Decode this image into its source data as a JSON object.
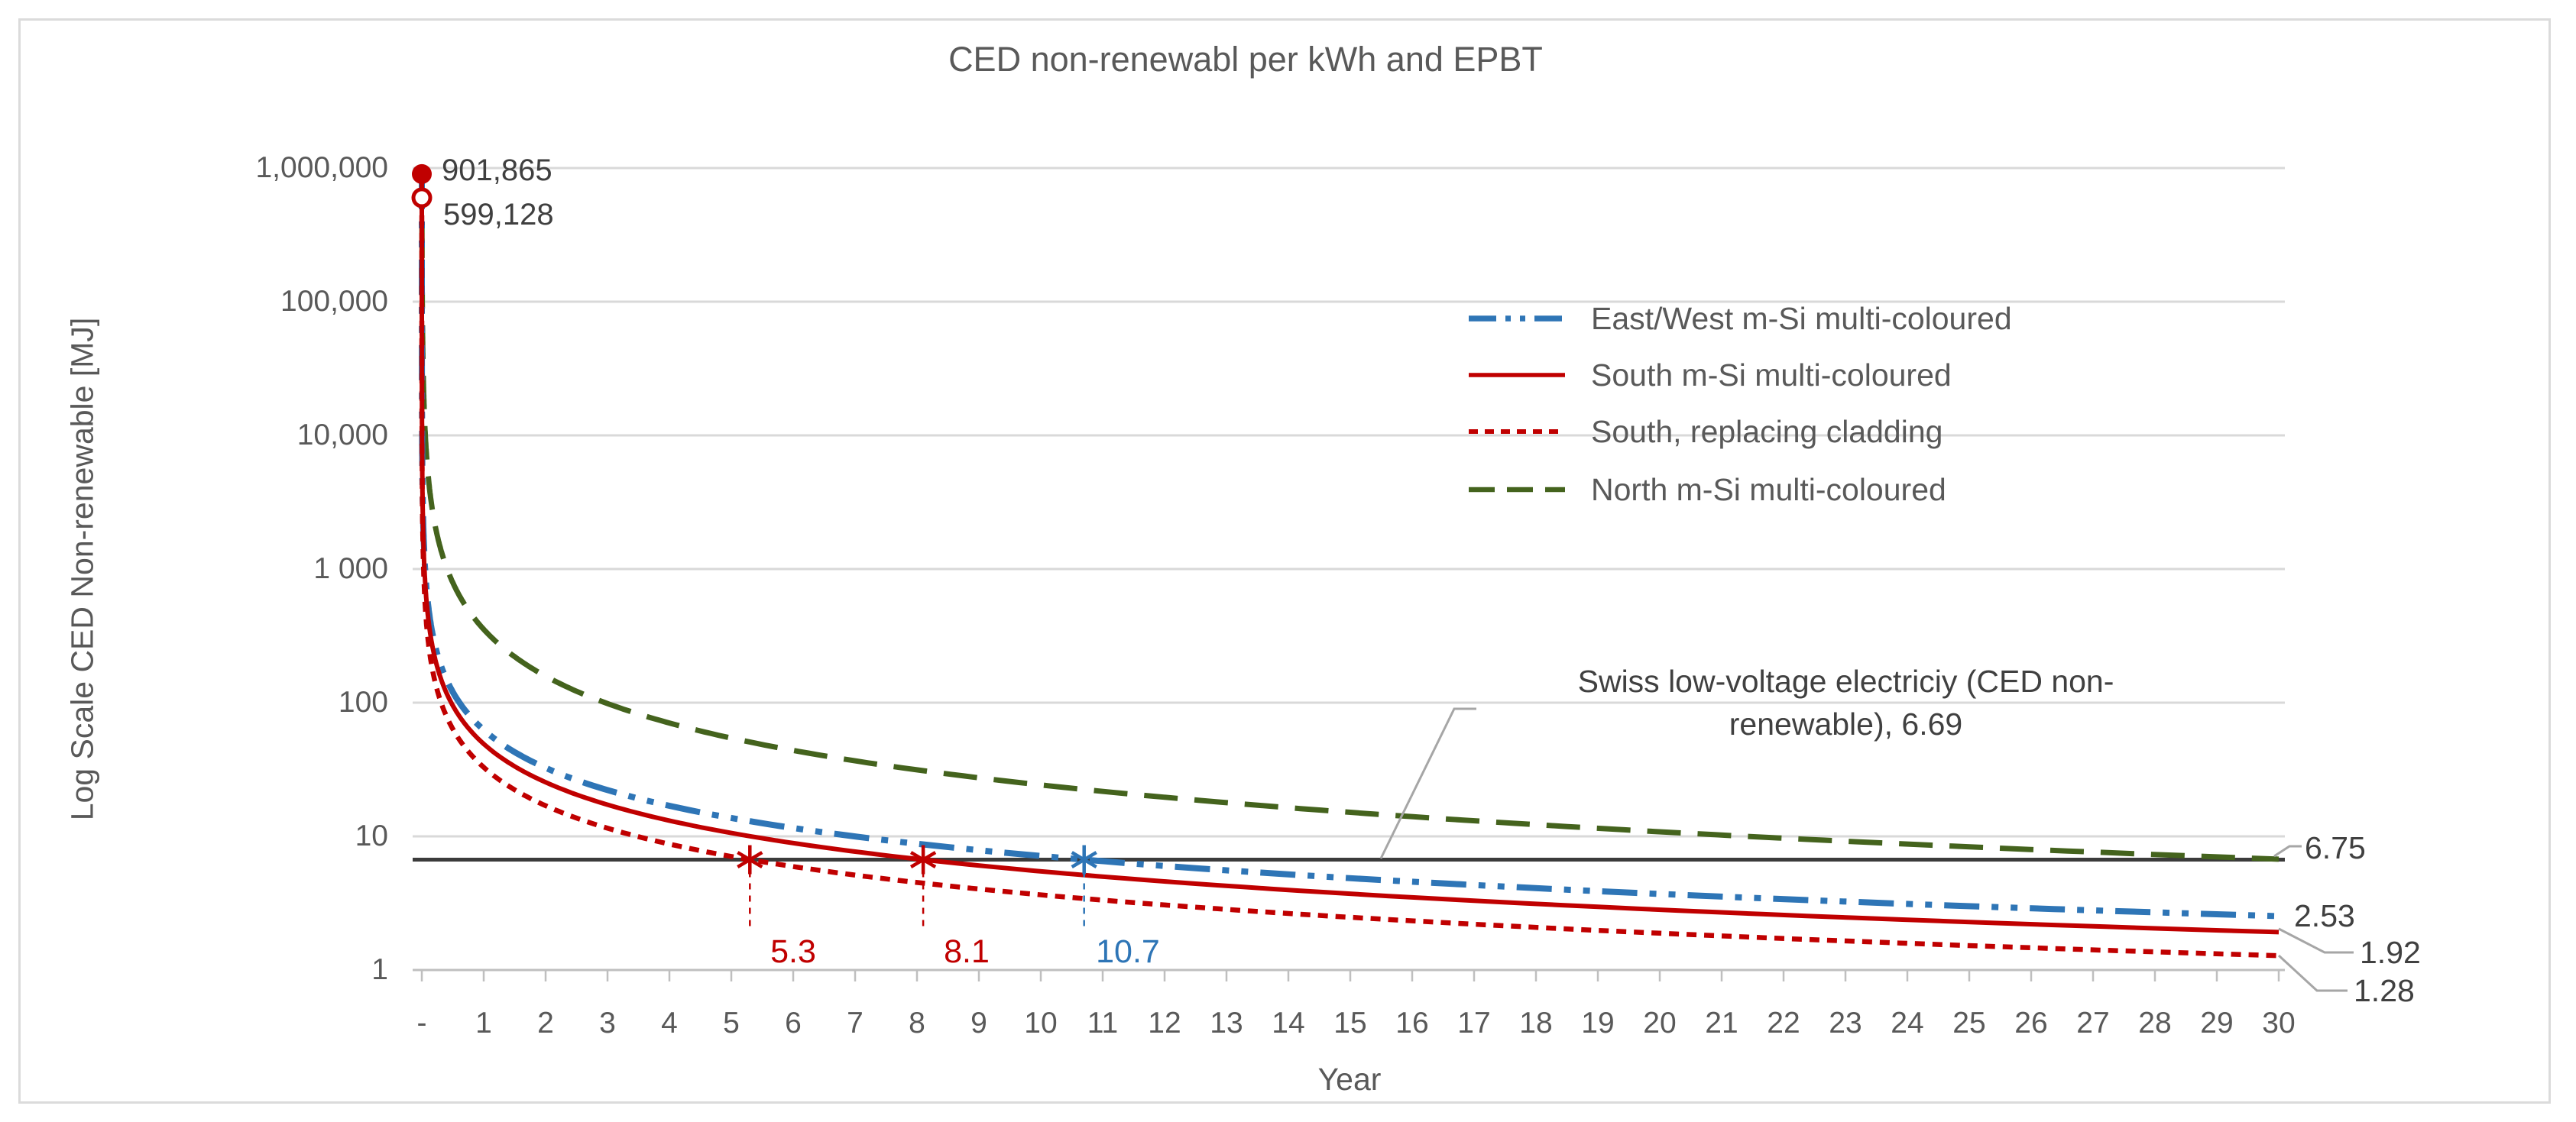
{
  "title": "CED non-renewabl per kWh and EPBT",
  "axes": {
    "x_label": "Year",
    "y_label": "Log Scale CED Non-renewable [MJ]",
    "x_ticks": [
      "-",
      "1",
      "2",
      "3",
      "4",
      "5",
      "6",
      "7",
      "8",
      "9",
      "10",
      "11",
      "12",
      "13",
      "14",
      "15",
      "16",
      "17",
      "18",
      "19",
      "20",
      "21",
      "22",
      "23",
      "24",
      "25",
      "26",
      "27",
      "28",
      "29",
      "30"
    ],
    "y_ticks": [
      "1",
      "10",
      "100",
      "1 000",
      "10,000",
      "100,000",
      "1,000,000"
    ]
  },
  "colors": {
    "blue": "#2E75B6",
    "red": "#C00000",
    "green": "#44631D",
    "gridline": "#D9D9D9",
    "axis_line": "#BFBFBF",
    "reference_line": "#3B3B3B",
    "leader_line": "#A6A6A6",
    "text_gray": "#595959",
    "text_dark": "#404040"
  },
  "chart_data": {
    "type": "line",
    "title": "CED non-renewabl per kWh and EPBT",
    "xlabel": "Year",
    "ylabel": "Log Scale CED Non-renewable [MJ]",
    "x_scale": "linear",
    "y_scale": "log",
    "xlim": [
      0,
      30
    ],
    "ylim": [
      1,
      1000000
    ],
    "grid": "horizontal",
    "legend_position": "upper-right-inside",
    "reference_line": {
      "name": "Swiss low-voltage electriciy (CED non-renewable)",
      "value": 6.69,
      "annotation_line1": "Swiss low-voltage electriciy (CED non-",
      "annotation_line2": "renewable),  6.69"
    },
    "series": [
      {
        "name": "East/West m-Si multi-coloured",
        "color": "#2E75B6",
        "line_style": "long-dash-dot-dot",
        "epbt_years": 10.7,
        "epbt_label": "10.7",
        "value_30yr": 2.53,
        "end_label": "2.53",
        "start_value": null,
        "start_label": null,
        "start_marker": null
      },
      {
        "name": "South m-Si multi-coloured",
        "color": "#C00000",
        "line_style": "solid",
        "epbt_years": 8.1,
        "epbt_label": "8.1",
        "value_30yr": 1.92,
        "end_label": "1.92",
        "start_value": 901865,
        "start_label": "901,865",
        "start_marker": "filled-circle"
      },
      {
        "name": "South, replacing cladding",
        "color": "#C00000",
        "line_style": "dotted",
        "epbt_years": 5.3,
        "epbt_label": "5.3",
        "value_30yr": 1.28,
        "end_label": "1.28",
        "start_value": 599128,
        "start_label": "599,128",
        "start_marker": "open-circle"
      },
      {
        "name": "North m-Si multi-coloured",
        "color": "#44631D",
        "line_style": "dashed",
        "epbt_years": null,
        "epbt_label": null,
        "value_30yr": 6.75,
        "end_label": "6.75",
        "start_value": null,
        "start_label": null,
        "start_marker": null
      }
    ]
  }
}
